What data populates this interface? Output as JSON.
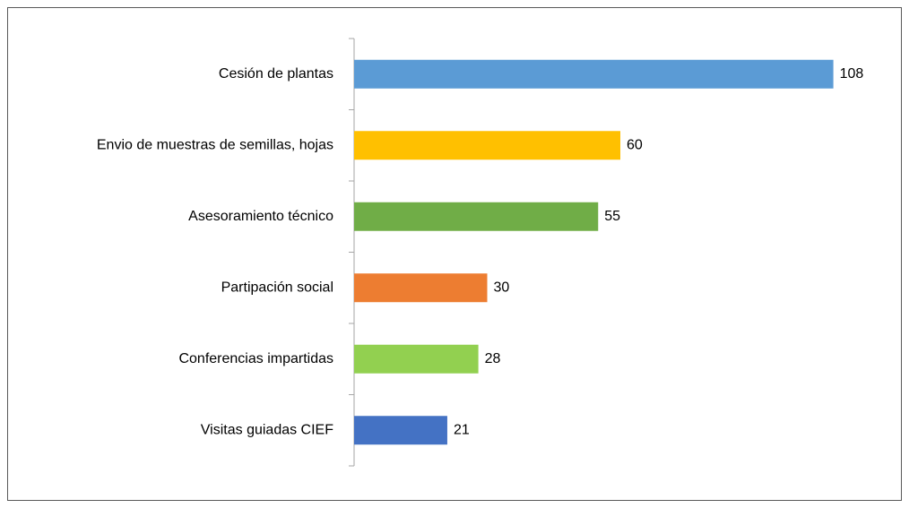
{
  "chart_data": {
    "type": "bar",
    "orientation": "horizontal",
    "categories": [
      "Cesión de plantas",
      "Envio de muestras de semillas, hojas",
      "Asesoramiento técnico",
      "Partipación social",
      "Conferencias impartidas",
      "Visitas guiadas CIEF"
    ],
    "values": [
      108,
      60,
      55,
      30,
      28,
      21
    ],
    "colors": [
      "#5b9bd5",
      "#ffc000",
      "#70ad47",
      "#ed7d31",
      "#92d050",
      "#4472c4"
    ]
  }
}
